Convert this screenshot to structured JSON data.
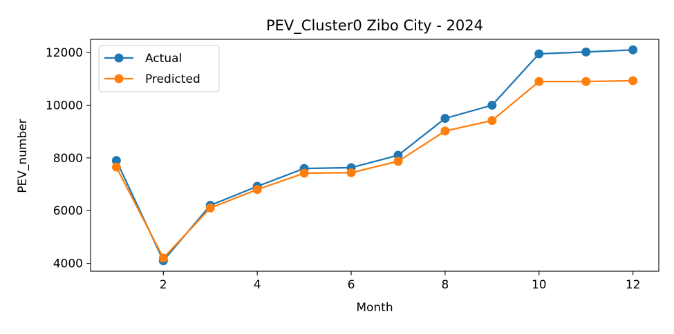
{
  "chart_data": {
    "type": "line",
    "title": "PEV_Cluster0 Zibo City - 2024",
    "xlabel": "Month",
    "ylabel": "PEV_number",
    "x": [
      1,
      2,
      3,
      4,
      5,
      6,
      7,
      8,
      9,
      10,
      11,
      12
    ],
    "xticks": [
      2,
      4,
      6,
      8,
      10,
      12
    ],
    "yticks": [
      4000,
      6000,
      8000,
      10000,
      12000
    ],
    "xlim": [
      0.45,
      12.55
    ],
    "ylim": [
      3700,
      12500
    ],
    "grid": false,
    "legend_position": "upper-left",
    "series": [
      {
        "name": "Actual",
        "color": "#1f77b4",
        "marker": "circle",
        "values": [
          7900,
          4100,
          6200,
          6920,
          7600,
          7630,
          8100,
          9500,
          10000,
          11950,
          12020,
          12100
        ]
      },
      {
        "name": "Predicted",
        "color": "#ff7f0e",
        "marker": "circle",
        "values": [
          7650,
          4200,
          6100,
          6800,
          7420,
          7440,
          7870,
          9020,
          9420,
          10900,
          10900,
          10930
        ]
      }
    ]
  }
}
